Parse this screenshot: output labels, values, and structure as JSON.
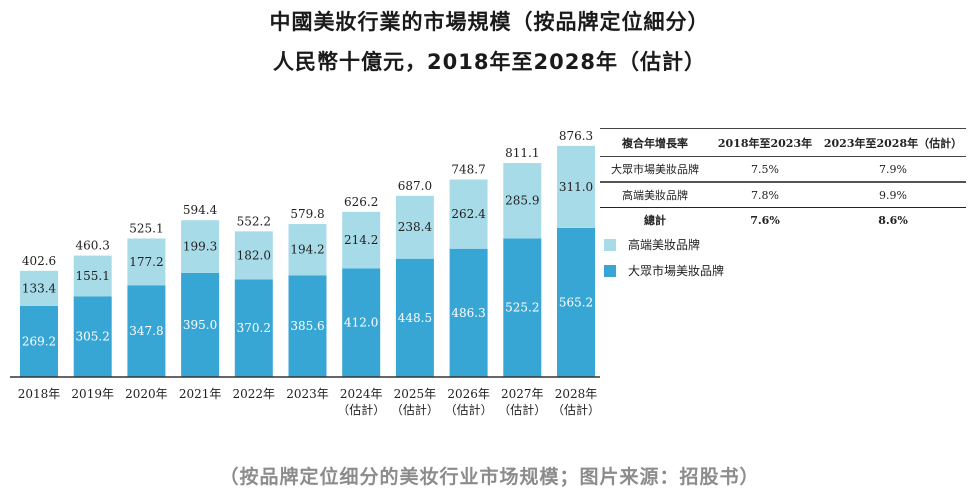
{
  "title_line1": "中國美妝行業的市場規模（按品牌定位細分）",
  "title_line2": "人民幣十億元，2018年至2028年（估計）",
  "colors": {
    "mass_market": "#38a6d4",
    "premium": "#a8dbe8",
    "axis": "#333333"
  },
  "chart_data": {
    "type": "bar",
    "stacked": true,
    "title": "中國美妝行業的市場規模（按品牌定位細分）",
    "subtitle": "人民幣十億元，2018年至2028年（估計）",
    "xlabel": "",
    "ylabel": "",
    "ylim": [
      0,
      900
    ],
    "grid": false,
    "categories": [
      "2018年",
      "2019年",
      "2020年",
      "2021年",
      "2022年",
      "2023年",
      "2024年",
      "2025年",
      "2026年",
      "2027年",
      "2028年"
    ],
    "category_sublabels": [
      "",
      "",
      "",
      "",
      "",
      "",
      "（估計）",
      "（估計）",
      "（估計）",
      "（估計）",
      "（估計）"
    ],
    "series": [
      {
        "name": "大眾市場美妝品牌",
        "values": [
          269.2,
          305.2,
          347.8,
          395.0,
          370.2,
          385.6,
          412.0,
          448.5,
          486.3,
          525.2,
          565.2
        ]
      },
      {
        "name": "高端美妝品牌",
        "values": [
          133.4,
          155.1,
          177.2,
          199.3,
          182.0,
          194.2,
          214.2,
          238.4,
          262.4,
          285.9,
          311.0
        ]
      }
    ],
    "totals": [
      402.6,
      460.3,
      525.1,
      594.4,
      552.2,
      579.8,
      626.2,
      687.0,
      748.7,
      811.1,
      876.3
    ],
    "legend": [
      "高端美妝品牌",
      "大眾市場美妝品牌"
    ],
    "legend_position": "right"
  },
  "cagr_table": {
    "headers": [
      "複合年增長率",
      "2018年至2023年",
      "2023年至2028年（估計）"
    ],
    "rows": [
      {
        "label": "大眾市場美妝品牌",
        "a": "7.5%",
        "b": "7.9%"
      },
      {
        "label": "高端美妝品牌",
        "a": "7.8%",
        "b": "9.9%"
      },
      {
        "label": "總計",
        "a": "7.6%",
        "b": "8.6%"
      }
    ]
  },
  "legend": {
    "premium_label": "高端美妝品牌",
    "mass_label": "大眾市場美妝品牌"
  },
  "caption": "（按品牌定位细分的美妆行业市场规模；图片来源：招股书）"
}
